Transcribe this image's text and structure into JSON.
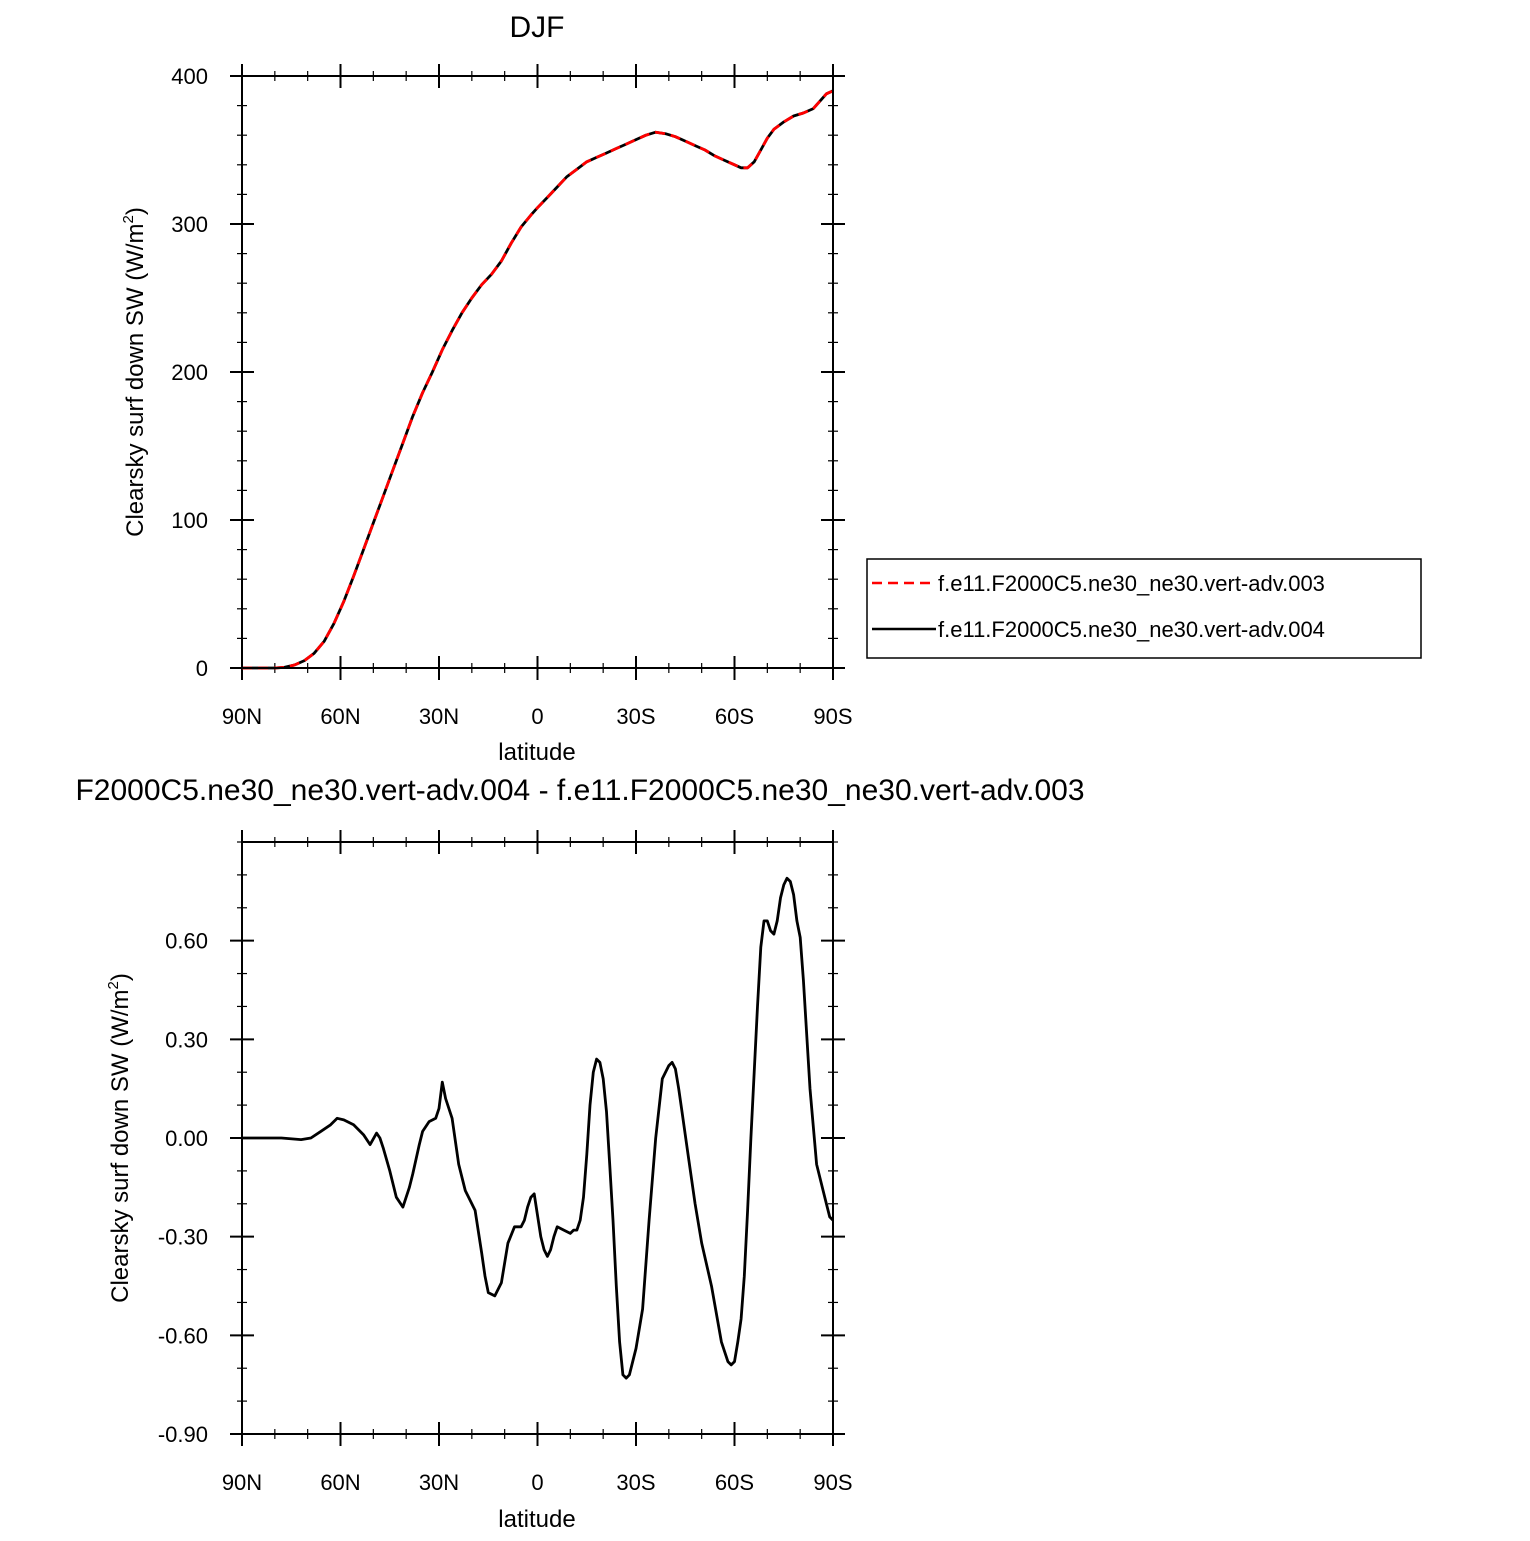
{
  "chart_data": [
    {
      "type": "line",
      "title": "DJF",
      "xlabel": "latitude",
      "ylabel": "Clearsky surf down SW (W/m",
      "ylabel_sup": "2",
      "ylabel_close": ")",
      "xlim": [
        90,
        -90
      ],
      "ylim": [
        0,
        400
      ],
      "xticks": [
        {
          "value": 90,
          "label": "90N"
        },
        {
          "value": 60,
          "label": "60N"
        },
        {
          "value": 30,
          "label": "30N"
        },
        {
          "value": 0,
          "label": "0"
        },
        {
          "value": -30,
          "label": "30S"
        },
        {
          "value": -60,
          "label": "60S"
        },
        {
          "value": -90,
          "label": "90S"
        }
      ],
      "yticks": [
        {
          "value": 0,
          "label": "0"
        },
        {
          "value": 100,
          "label": "100"
        },
        {
          "value": 200,
          "label": "200"
        },
        {
          "value": 300,
          "label": "300"
        },
        {
          "value": 400,
          "label": "400"
        }
      ],
      "legend": {
        "position": "right",
        "box": true
      },
      "series": [
        {
          "name": "f.e11.F2000C5.ne30_ne30.vert-adv.003",
          "color": "#ff0000",
          "dash": "dashed",
          "x": [
            90,
            85,
            80,
            77,
            74,
            71,
            68,
            65,
            62,
            59,
            56,
            53,
            50,
            47,
            44,
            41,
            38,
            35,
            32,
            29,
            26,
            23,
            20,
            17,
            14,
            11,
            8,
            5,
            2,
            0,
            -3,
            -6,
            -9,
            -12,
            -15,
            -18,
            -21,
            -24,
            -27,
            -30,
            -33,
            -36,
            -39,
            -42,
            -45,
            -48,
            -51,
            -54,
            -57,
            -60,
            -62,
            -64,
            -66,
            -68,
            -70,
            -72,
            -75,
            -78,
            -81,
            -84,
            -86,
            -88,
            -90
          ],
          "y": [
            0,
            0,
            0,
            0.5,
            2,
            5,
            10,
            18,
            30,
            45,
            62,
            80,
            98,
            116,
            134,
            152,
            170,
            186,
            200,
            215,
            228,
            240,
            250,
            259,
            266,
            275,
            287,
            298,
            306,
            311,
            318,
            325,
            332,
            337,
            342,
            345,
            348,
            351,
            354,
            357,
            360,
            362,
            361,
            359,
            356,
            353,
            350,
            346,
            343,
            340,
            338,
            338,
            342,
            350,
            358,
            364,
            369,
            373,
            375,
            378,
            383,
            388,
            390
          ]
        },
        {
          "name": "f.e11.F2000C5.ne30_ne30.vert-adv.004",
          "color": "#000000",
          "dash": "solid",
          "x": [
            90,
            85,
            80,
            77,
            74,
            71,
            68,
            65,
            62,
            59,
            56,
            53,
            50,
            47,
            44,
            41,
            38,
            35,
            32,
            29,
            26,
            23,
            20,
            17,
            14,
            11,
            8,
            5,
            2,
            0,
            -3,
            -6,
            -9,
            -12,
            -15,
            -18,
            -21,
            -24,
            -27,
            -30,
            -33,
            -36,
            -39,
            -42,
            -45,
            -48,
            -51,
            -54,
            -57,
            -60,
            -62,
            -64,
            -66,
            -68,
            -70,
            -72,
            -75,
            -78,
            -81,
            -84,
            -86,
            -88,
            -90
          ],
          "y": [
            0,
            0,
            0,
            0.5,
            2,
            5,
            10,
            18,
            30,
            45,
            62,
            80,
            98,
            116,
            134,
            152,
            170,
            186,
            200,
            215,
            228,
            240,
            250,
            259,
            266,
            275,
            287,
            298,
            306,
            311,
            318,
            325,
            332,
            337,
            342,
            345,
            348,
            351,
            354,
            357,
            360,
            362,
            361,
            359,
            356,
            353,
            350,
            346,
            343,
            340,
            338,
            338,
            342,
            350,
            358,
            364,
            369,
            373,
            375,
            378,
            383,
            388,
            390
          ]
        }
      ]
    },
    {
      "type": "line",
      "title": "F2000C5.ne30_ne30.vert-adv.004 - f.e11.F2000C5.ne30_ne30.vert-adv.003",
      "xlabel": "latitude",
      "ylabel": "Clearsky surf down SW (W/m",
      "ylabel_sup": "2",
      "ylabel_close": ")",
      "xlim": [
        90,
        -90
      ],
      "ylim": [
        -0.9,
        0.9
      ],
      "xticks": [
        {
          "value": 90,
          "label": "90N"
        },
        {
          "value": 60,
          "label": "60N"
        },
        {
          "value": 30,
          "label": "30N"
        },
        {
          "value": 0,
          "label": "0"
        },
        {
          "value": -30,
          "label": "30S"
        },
        {
          "value": -60,
          "label": "60S"
        },
        {
          "value": -90,
          "label": "90S"
        }
      ],
      "yticks": [
        {
          "value": -0.9,
          "label": "-0.90"
        },
        {
          "value": -0.6,
          "label": "-0.60"
        },
        {
          "value": -0.3,
          "label": "-0.30"
        },
        {
          "value": 0,
          "label": "0.00"
        },
        {
          "value": 0.3,
          "label": "0.30"
        },
        {
          "value": 0.6,
          "label": "0.60"
        }
      ],
      "series": [
        {
          "color": "#000000",
          "dash": "solid",
          "x": [
            90,
            78,
            72,
            69,
            66,
            63,
            61,
            59,
            56,
            53,
            51,
            49,
            48,
            47,
            45,
            43,
            41,
            39,
            38,
            36,
            35,
            33,
            31,
            30,
            29,
            28,
            26,
            24,
            23,
            22,
            21,
            19,
            17,
            16,
            15,
            13,
            11,
            9,
            7,
            6,
            5,
            4,
            3,
            2,
            1,
            -1,
            -2,
            -3,
            -4,
            -5,
            -6,
            -8,
            -10,
            -11,
            -12,
            -13,
            -14,
            -15,
            -16,
            -17,
            -18,
            -19,
            -20,
            -21,
            -22,
            -23,
            -24,
            -25,
            -26,
            -27,
            -28,
            -29,
            -30,
            -32,
            -34,
            -36,
            -38,
            -40,
            -41,
            -42,
            -43,
            -44,
            -46,
            -48,
            -50,
            -53,
            -56,
            -58,
            -59,
            -60,
            -61,
            -62,
            -63,
            -64,
            -65,
            -66,
            -67,
            -68,
            -69,
            -70,
            -71,
            -72,
            -73,
            -74,
            -75,
            -76,
            -77,
            -78,
            -79,
            -80,
            -81,
            -83,
            -85,
            -87,
            -88,
            -89,
            -90
          ],
          "y": [
            0,
            0,
            -0.005,
            0,
            0.02,
            0.04,
            0.06,
            0.055,
            0.04,
            0.01,
            -0.02,
            0.015,
            0,
            -0.03,
            -0.1,
            -0.18,
            -0.21,
            -0.15,
            -0.11,
            -0.02,
            0.02,
            0.05,
            0.06,
            0.09,
            0.17,
            0.12,
            0.06,
            -0.08,
            -0.12,
            -0.16,
            -0.18,
            -0.22,
            -0.35,
            -0.42,
            -0.47,
            -0.48,
            -0.44,
            -0.32,
            -0.27,
            -0.27,
            -0.27,
            -0.25,
            -0.21,
            -0.18,
            -0.17,
            -0.3,
            -0.34,
            -0.36,
            -0.34,
            -0.3,
            -0.27,
            -0.28,
            -0.29,
            -0.28,
            -0.28,
            -0.25,
            -0.18,
            -0.05,
            0.1,
            0.2,
            0.24,
            0.23,
            0.18,
            0.08,
            -0.08,
            -0.25,
            -0.45,
            -0.62,
            -0.72,
            -0.73,
            -0.72,
            -0.68,
            -0.64,
            -0.52,
            -0.25,
            0.0,
            0.18,
            0.22,
            0.23,
            0.21,
            0.15,
            0.08,
            -0.06,
            -0.2,
            -0.32,
            -0.45,
            -0.62,
            -0.68,
            -0.69,
            -0.68,
            -0.62,
            -0.55,
            -0.42,
            -0.22,
            0.0,
            0.2,
            0.4,
            0.58,
            0.66,
            0.66,
            0.63,
            0.62,
            0.66,
            0.73,
            0.77,
            0.79,
            0.78,
            0.74,
            0.66,
            0.61,
            0.48,
            0.15,
            -0.08,
            -0.16,
            -0.2,
            -0.24,
            -0.25
          ]
        }
      ]
    }
  ]
}
